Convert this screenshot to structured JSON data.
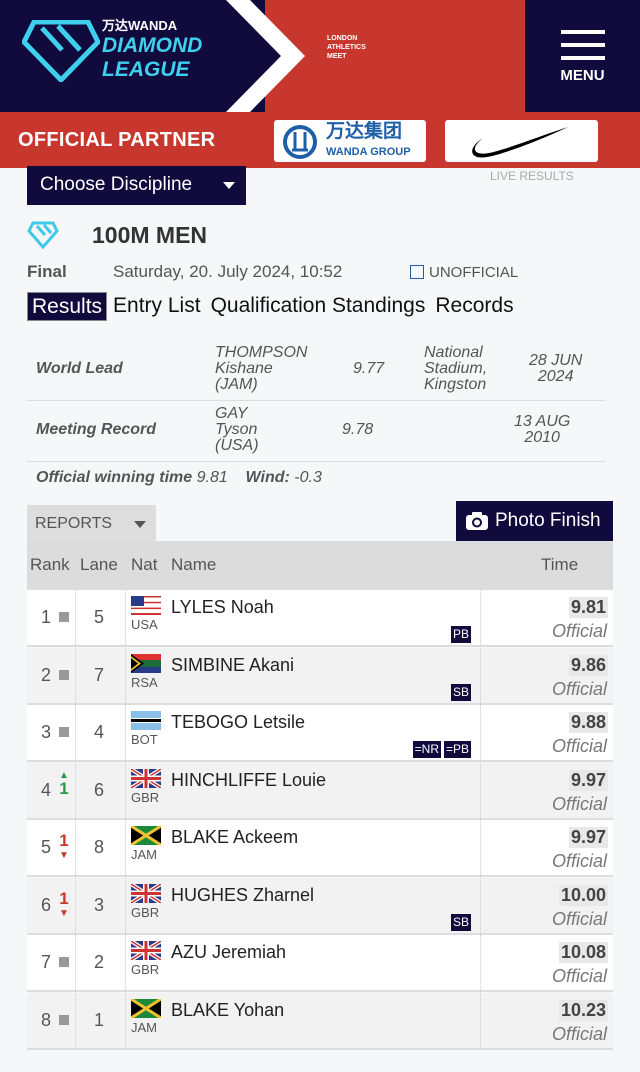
{
  "header": {
    "brand_top": "万达WANDA",
    "brand_line1": "DIAMOND",
    "brand_line2": "LEAGUE",
    "meet": [
      "LONDON",
      "ATHLETICS",
      "MEET"
    ],
    "menu_label": "MENU"
  },
  "partner": {
    "label": "OFFICIAL PARTNER",
    "wanda_cn": "万达集团",
    "wanda_en": "WANDA GROUP"
  },
  "choose_discipline": "Choose Discipline",
  "live_results": "LIVE RESULTS",
  "event": {
    "title": "100M MEN",
    "phase": "Final",
    "datetime": "Saturday, 20. July 2024, 10:52",
    "status": "UNOFFICIAL"
  },
  "tabs": [
    {
      "label": "Results",
      "active": true
    },
    {
      "label": "Entry List"
    },
    {
      "label": "Qualification Standings"
    },
    {
      "label": "Records"
    }
  ],
  "records": [
    {
      "type": "World Lead",
      "athlete": [
        "THOMPSON",
        "Kishane",
        "(JAM)"
      ],
      "mark": "9.77",
      "venue": [
        "National",
        "Stadium,",
        "Kingston"
      ],
      "date": [
        "28 JUN",
        "2024"
      ]
    },
    {
      "type": "Meeting Record",
      "athlete": [
        "GAY",
        "Tyson",
        "(USA)"
      ],
      "mark": "9.78",
      "venue": [
        "",
        "",
        ""
      ],
      "date": [
        "13 AUG",
        "2010"
      ]
    }
  ],
  "winning": {
    "label": "Official winning time",
    "value": "9.81",
    "wind_label": "Wind:",
    "wind_value": "-0.3"
  },
  "reports_label": "REPORTS",
  "photo_finish_label": "Photo Finish",
  "columns": {
    "rank": "Rank",
    "lane": "Lane",
    "nat": "Nat",
    "name": "Name",
    "time": "Time"
  },
  "results": [
    {
      "rank": "1",
      "move": "same",
      "lane": "5",
      "nat": "USA",
      "name": "LYLES Noah",
      "badges": [
        "PB"
      ],
      "time": "9.81",
      "status": "Official"
    },
    {
      "rank": "2",
      "move": "same",
      "lane": "7",
      "nat": "RSA",
      "name": "SIMBINE Akani",
      "badges": [
        "SB"
      ],
      "time": "9.86",
      "status": "Official"
    },
    {
      "rank": "3",
      "move": "same",
      "lane": "4",
      "nat": "BOT",
      "name": "TEBOGO Letsile",
      "badges": [
        "=NR",
        "=PB"
      ],
      "time": "9.88",
      "status": "Official"
    },
    {
      "rank": "4",
      "move": "up",
      "move_by": "1",
      "lane": "6",
      "nat": "GBR",
      "name": "HINCHLIFFE Louie",
      "badges": [],
      "time": "9.97",
      "status": "Official"
    },
    {
      "rank": "5",
      "move": "down",
      "move_by": "1",
      "lane": "8",
      "nat": "JAM",
      "name": "BLAKE Ackeem",
      "badges": [],
      "time": "9.97",
      "status": "Official"
    },
    {
      "rank": "6",
      "move": "down",
      "move_by": "1",
      "lane": "3",
      "nat": "GBR",
      "name": "HUGHES Zharnel",
      "badges": [
        "SB"
      ],
      "time": "10.00",
      "status": "Official"
    },
    {
      "rank": "7",
      "move": "same",
      "lane": "2",
      "nat": "GBR",
      "name": "AZU Jeremiah",
      "badges": [],
      "time": "10.08",
      "status": "Official"
    },
    {
      "rank": "8",
      "move": "same",
      "lane": "1",
      "nat": "JAM",
      "name": "BLAKE Yohan",
      "badges": [],
      "time": "10.23",
      "status": "Official"
    }
  ],
  "colors": {
    "navy": "#110a3d",
    "red": "#c8372d",
    "cyan": "#3fd0ee",
    "up": "#2a9a4a",
    "down": "#c8372d"
  }
}
